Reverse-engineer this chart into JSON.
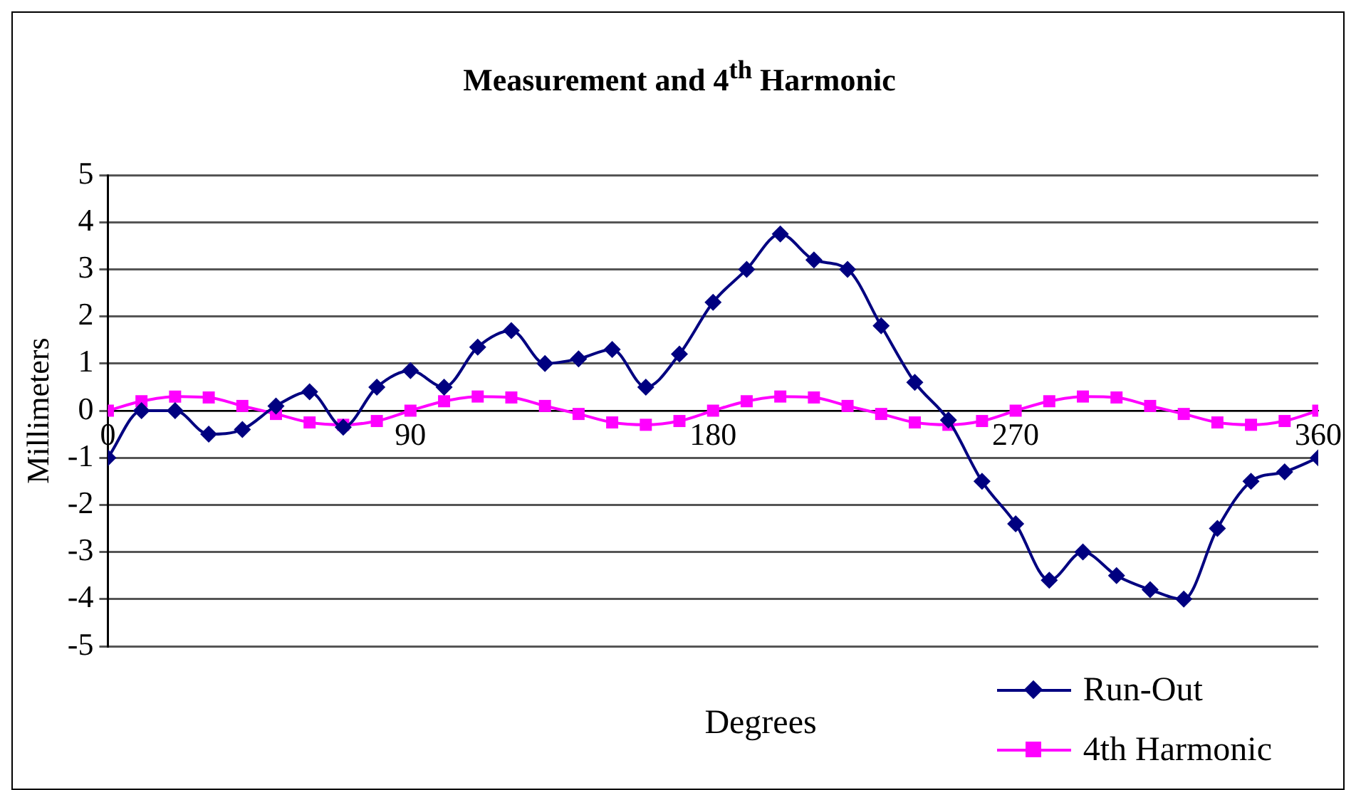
{
  "chart_data": {
    "type": "line",
    "title": "Measurement and 4$^{th}$ Harmonic",
    "xlabel": "Degrees",
    "ylabel": "Millimeters",
    "x": [
      0,
      10,
      20,
      30,
      40,
      50,
      60,
      70,
      80,
      90,
      100,
      110,
      120,
      130,
      140,
      150,
      160,
      170,
      180,
      190,
      200,
      210,
      220,
      230,
      240,
      250,
      260,
      270,
      280,
      290,
      300,
      310,
      320,
      330,
      340,
      350,
      360
    ],
    "series": [
      {
        "name": "Run-Out",
        "color": "#000080",
        "marker": "diamond",
        "values": [
          -1,
          0,
          0,
          -0.5,
          -0.4,
          0.1,
          0.4,
          -0.35,
          0.5,
          0.85,
          0.5,
          1.35,
          1.7,
          1.0,
          1.1,
          1.3,
          0.5,
          1.2,
          2.3,
          3.0,
          3.75,
          3.2,
          3.0,
          1.8,
          0.6,
          -0.2,
          -1.5,
          -2.4,
          -3.6,
          -3.0,
          -3.5,
          -3.8,
          -4.0,
          -2.5,
          -1.5,
          -1.3,
          -1.0
        ]
      },
      {
        "name": "4th Harmonic",
        "color": "#ff00ff",
        "marker": "square",
        "values": [
          0,
          0.2,
          0.3,
          0.28,
          0.1,
          -0.07,
          -0.25,
          -0.3,
          -0.22,
          0,
          0.2,
          0.3,
          0.28,
          0.1,
          -0.07,
          -0.25,
          -0.3,
          -0.22,
          0,
          0.2,
          0.3,
          0.28,
          0.1,
          -0.07,
          -0.25,
          -0.3,
          -0.22,
          0,
          0.2,
          0.3,
          0.28,
          0.1,
          -0.07,
          -0.25,
          -0.3,
          -0.22,
          0
        ]
      }
    ],
    "xlim": [
      0,
      360
    ],
    "xticks": [
      0,
      90,
      180,
      270,
      360
    ],
    "ylim": [
      -5,
      5
    ],
    "yticks": [
      -5,
      -4,
      -3,
      -2,
      -1,
      0,
      1,
      2,
      3,
      4,
      5
    ],
    "grid": "y",
    "legend": "bottom right",
    "line_style": "solid"
  }
}
